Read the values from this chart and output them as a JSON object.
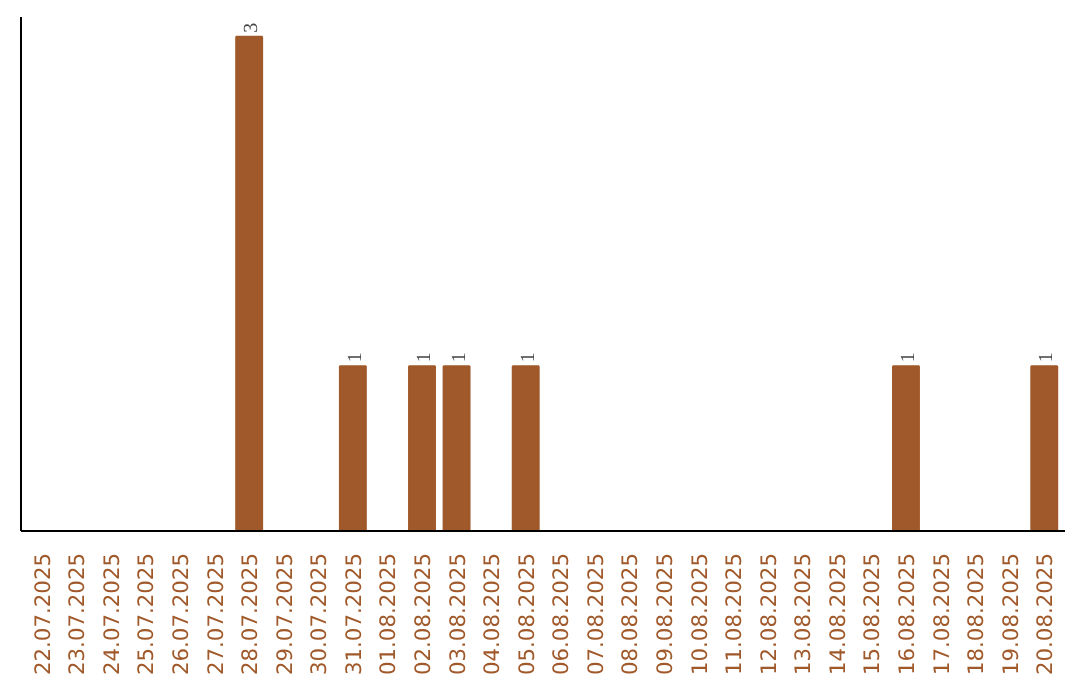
{
  "chart_data": {
    "type": "bar",
    "categories": [
      "22.07.2025",
      "23.07.2025",
      "24.07.2025",
      "25.07.2025",
      "26.07.2025",
      "27.07.2025",
      "28.07.2025",
      "29.07.2025",
      "30.07.2025",
      "31.07.2025",
      "01.08.2025",
      "02.08.2025",
      "03.08.2025",
      "04.08.2025",
      "05.08.2025",
      "06.08.2025",
      "07.08.2025",
      "08.08.2025",
      "09.08.2025",
      "10.08.2025",
      "11.08.2025",
      "12.08.2025",
      "13.08.2025",
      "14.08.2025",
      "15.08.2025",
      "16.08.2025",
      "17.08.2025",
      "18.08.2025",
      "19.08.2025",
      "20.08.2025"
    ],
    "values": [
      0,
      0,
      0,
      0,
      0,
      0,
      3,
      0,
      0,
      1,
      0,
      1,
      1,
      0,
      1,
      0,
      0,
      0,
      0,
      0,
      0,
      0,
      0,
      0,
      0,
      1,
      0,
      0,
      0,
      1
    ],
    "value_labels": [
      null,
      null,
      null,
      null,
      null,
      null,
      "3",
      null,
      null,
      "1",
      null,
      "1",
      "1",
      null,
      "1",
      null,
      null,
      null,
      null,
      null,
      null,
      null,
      null,
      null,
      null,
      "1",
      null,
      null,
      null,
      "1"
    ],
    "color": "#a0592a",
    "grid": false
  }
}
